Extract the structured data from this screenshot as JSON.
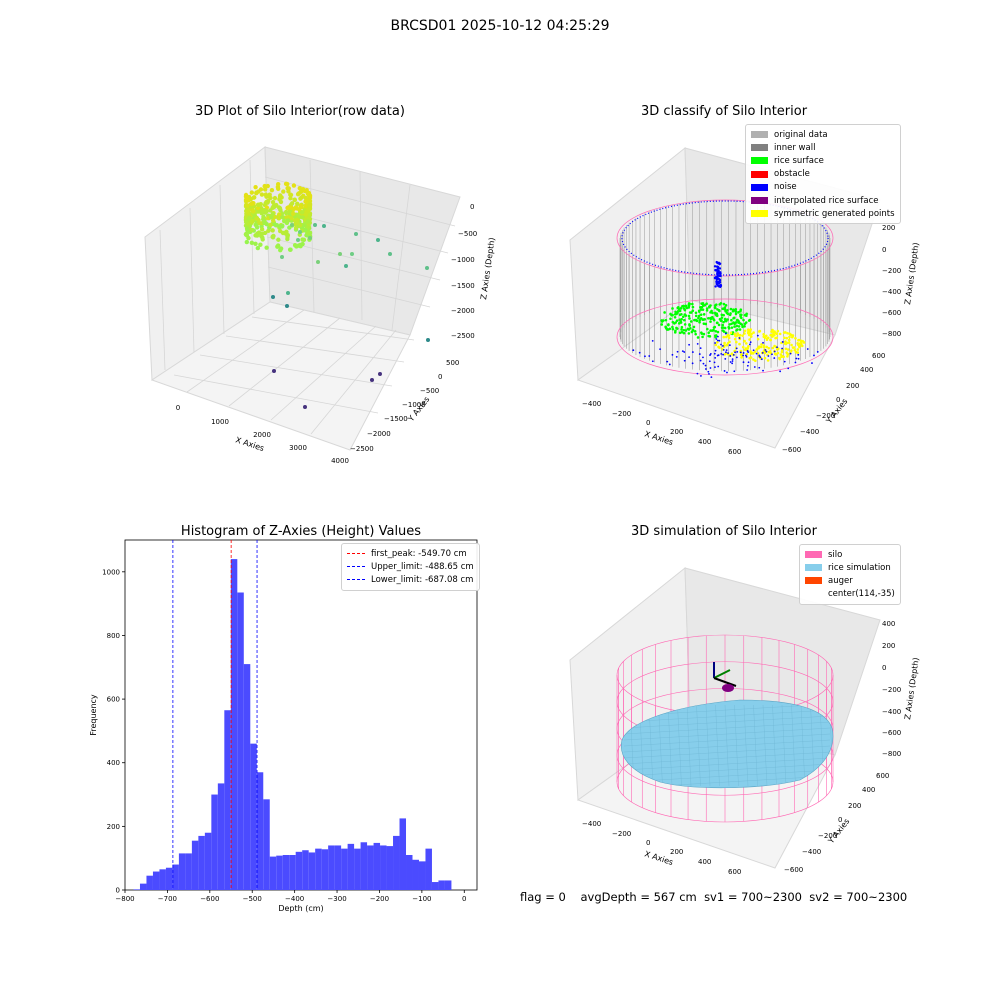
{
  "page": {
    "title": "BRCSD01 2025-10-12 04:25:29",
    "footer": {
      "flag": "flag = 0",
      "avg_depth": "avgDepth = 567 cm",
      "sv1": "sv1 = 700~2300",
      "sv2": "sv2 = 700~2300"
    }
  },
  "colors": {
    "original": "#b0b0b0",
    "inner_wall": "#808080",
    "rice_surface": "#00ff00",
    "obstacle": "#ff0000",
    "noise": "#0000ff",
    "interpolated": "#800080",
    "symmetric": "#ffff00",
    "silo": "#ff69b4",
    "rice_sim": "#87ceeb",
    "auger": "#ff4500",
    "hist_bar": "#4b4bff",
    "first_peak": "#ff0000",
    "limits": "#0000ff"
  },
  "panel_raw": {
    "title": "3D Plot of Silo Interior(row data)",
    "xlabel": "X Axies",
    "ylabel": "Y Axies",
    "zlabel": "Z Axies (Depth)",
    "x_ticks": [
      "0",
      "1000",
      "2000",
      "3000",
      "4000"
    ],
    "y_ticks": [
      "500",
      "0",
      "−500",
      "−1000",
      "−1500",
      "−2000",
      "−2500"
    ],
    "z_ticks": [
      "0",
      "−500",
      "−1000",
      "−1500",
      "−2000",
      "−2500"
    ]
  },
  "panel_classify": {
    "title": "3D classify of Silo Interior",
    "xlabel": "X Axies",
    "ylabel": "Y Axies",
    "zlabel": "Z Axies (Depth)",
    "x_ticks": [
      "−400",
      "−200",
      "0",
      "200",
      "400",
      "600"
    ],
    "y_ticks": [
      "600",
      "400",
      "200",
      "0",
      "−200",
      "−400",
      "−600"
    ],
    "z_ticks": [
      "200",
      "0",
      "−200",
      "−400",
      "−600",
      "−800"
    ],
    "legend": [
      "original data",
      "inner wall",
      "rice surface",
      "obstacle",
      "noise",
      "interpolated rice surface",
      "symmetric generated points"
    ]
  },
  "panel_sim": {
    "title": "3D simulation of Silo Interior",
    "xlabel": "X Axies",
    "ylabel": "Y Axies",
    "zlabel": "Z Axies (Depth)",
    "x_ticks": [
      "−400",
      "−200",
      "0",
      "200",
      "400",
      "600"
    ],
    "y_ticks": [
      "600",
      "400",
      "200",
      "0",
      "−200",
      "−400",
      "−600"
    ],
    "z_ticks": [
      "400",
      "200",
      "0",
      "−200",
      "−400",
      "−600",
      "−800"
    ],
    "legend": [
      "silo",
      "rice simulation",
      "auger",
      "center(114,-35)"
    ]
  },
  "chart_data": [
    {
      "type": "bar",
      "title": "Histogram of Z-Axies (Height) Values",
      "xlabel": "Depth (cm)",
      "ylabel": "Frequency",
      "xlim": [
        -800,
        30
      ],
      "ylim": [
        0,
        1100
      ],
      "x_ticks": [
        -800,
        -700,
        -600,
        -500,
        -400,
        -300,
        -200,
        -100,
        0
      ],
      "x_tick_labels": [
        "−800",
        "−700",
        "−600",
        "−500",
        "−400",
        "−300",
        "−200",
        "−100",
        "0"
      ],
      "y_ticks": [
        0,
        200,
        400,
        600,
        800,
        1000
      ],
      "y_tick_labels": [
        "0",
        "200",
        "400",
        "600",
        "800",
        "1000"
      ],
      "bin_width": 15.3,
      "bin_start": -780,
      "values": [
        2,
        20,
        45,
        58,
        65,
        70,
        80,
        115,
        115,
        155,
        170,
        180,
        300,
        335,
        565,
        1040,
        935,
        710,
        460,
        370,
        285,
        105,
        108,
        110,
        110,
        120,
        125,
        118,
        130,
        128,
        140,
        140,
        130,
        145,
        130,
        150,
        140,
        148,
        140,
        138,
        170,
        225,
        110,
        95,
        90,
        130,
        25,
        30,
        30
      ],
      "vlines": [
        {
          "label": "first_peak: -549.70 cm",
          "x": -549.7,
          "style": "red"
        },
        {
          "label": "Upper_limit: -488.65 cm",
          "x": -488.65,
          "style": "blue"
        },
        {
          "label": "Lower_limit: -687.08 cm",
          "x": -687.08,
          "style": "blue"
        }
      ],
      "legend_position": "top-right"
    }
  ]
}
